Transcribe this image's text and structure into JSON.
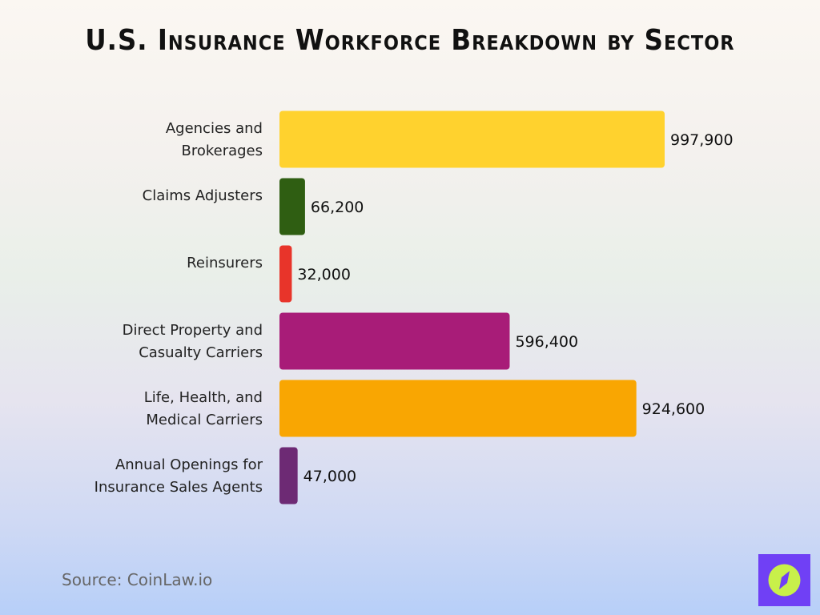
{
  "chart_data": {
    "type": "bar",
    "orientation": "horizontal",
    "title": "U.S. Insurance Workforce Breakdown by Sector",
    "categories": [
      [
        "Agencies and",
        "Brokerages"
      ],
      [
        "Claims Adjusters"
      ],
      [
        "Reinsurers"
      ],
      [
        "Direct Property and",
        "Casualty Carriers"
      ],
      [
        "Life, Health, and",
        "Medical Carriers"
      ],
      [
        "Annual Openings for",
        "Insurance Sales Agents"
      ]
    ],
    "values": [
      997900,
      66200,
      32000,
      596400,
      924600,
      47000
    ],
    "value_labels": [
      "997,900",
      "66,200",
      "32,000",
      "596,400",
      "924,600",
      "47,000"
    ],
    "colors": [
      "#ffd22e",
      "#2f5e12",
      "#e8342a",
      "#a81c78",
      "#f9a602",
      "#6d2a74"
    ],
    "xlim": [
      0,
      997900
    ],
    "grid": false,
    "legend": "none"
  },
  "source": "Source: CoinLaw.io",
  "logo": {
    "icon": "compass-icon",
    "bg": "#7040f5",
    "fg": "#c8f04a"
  }
}
